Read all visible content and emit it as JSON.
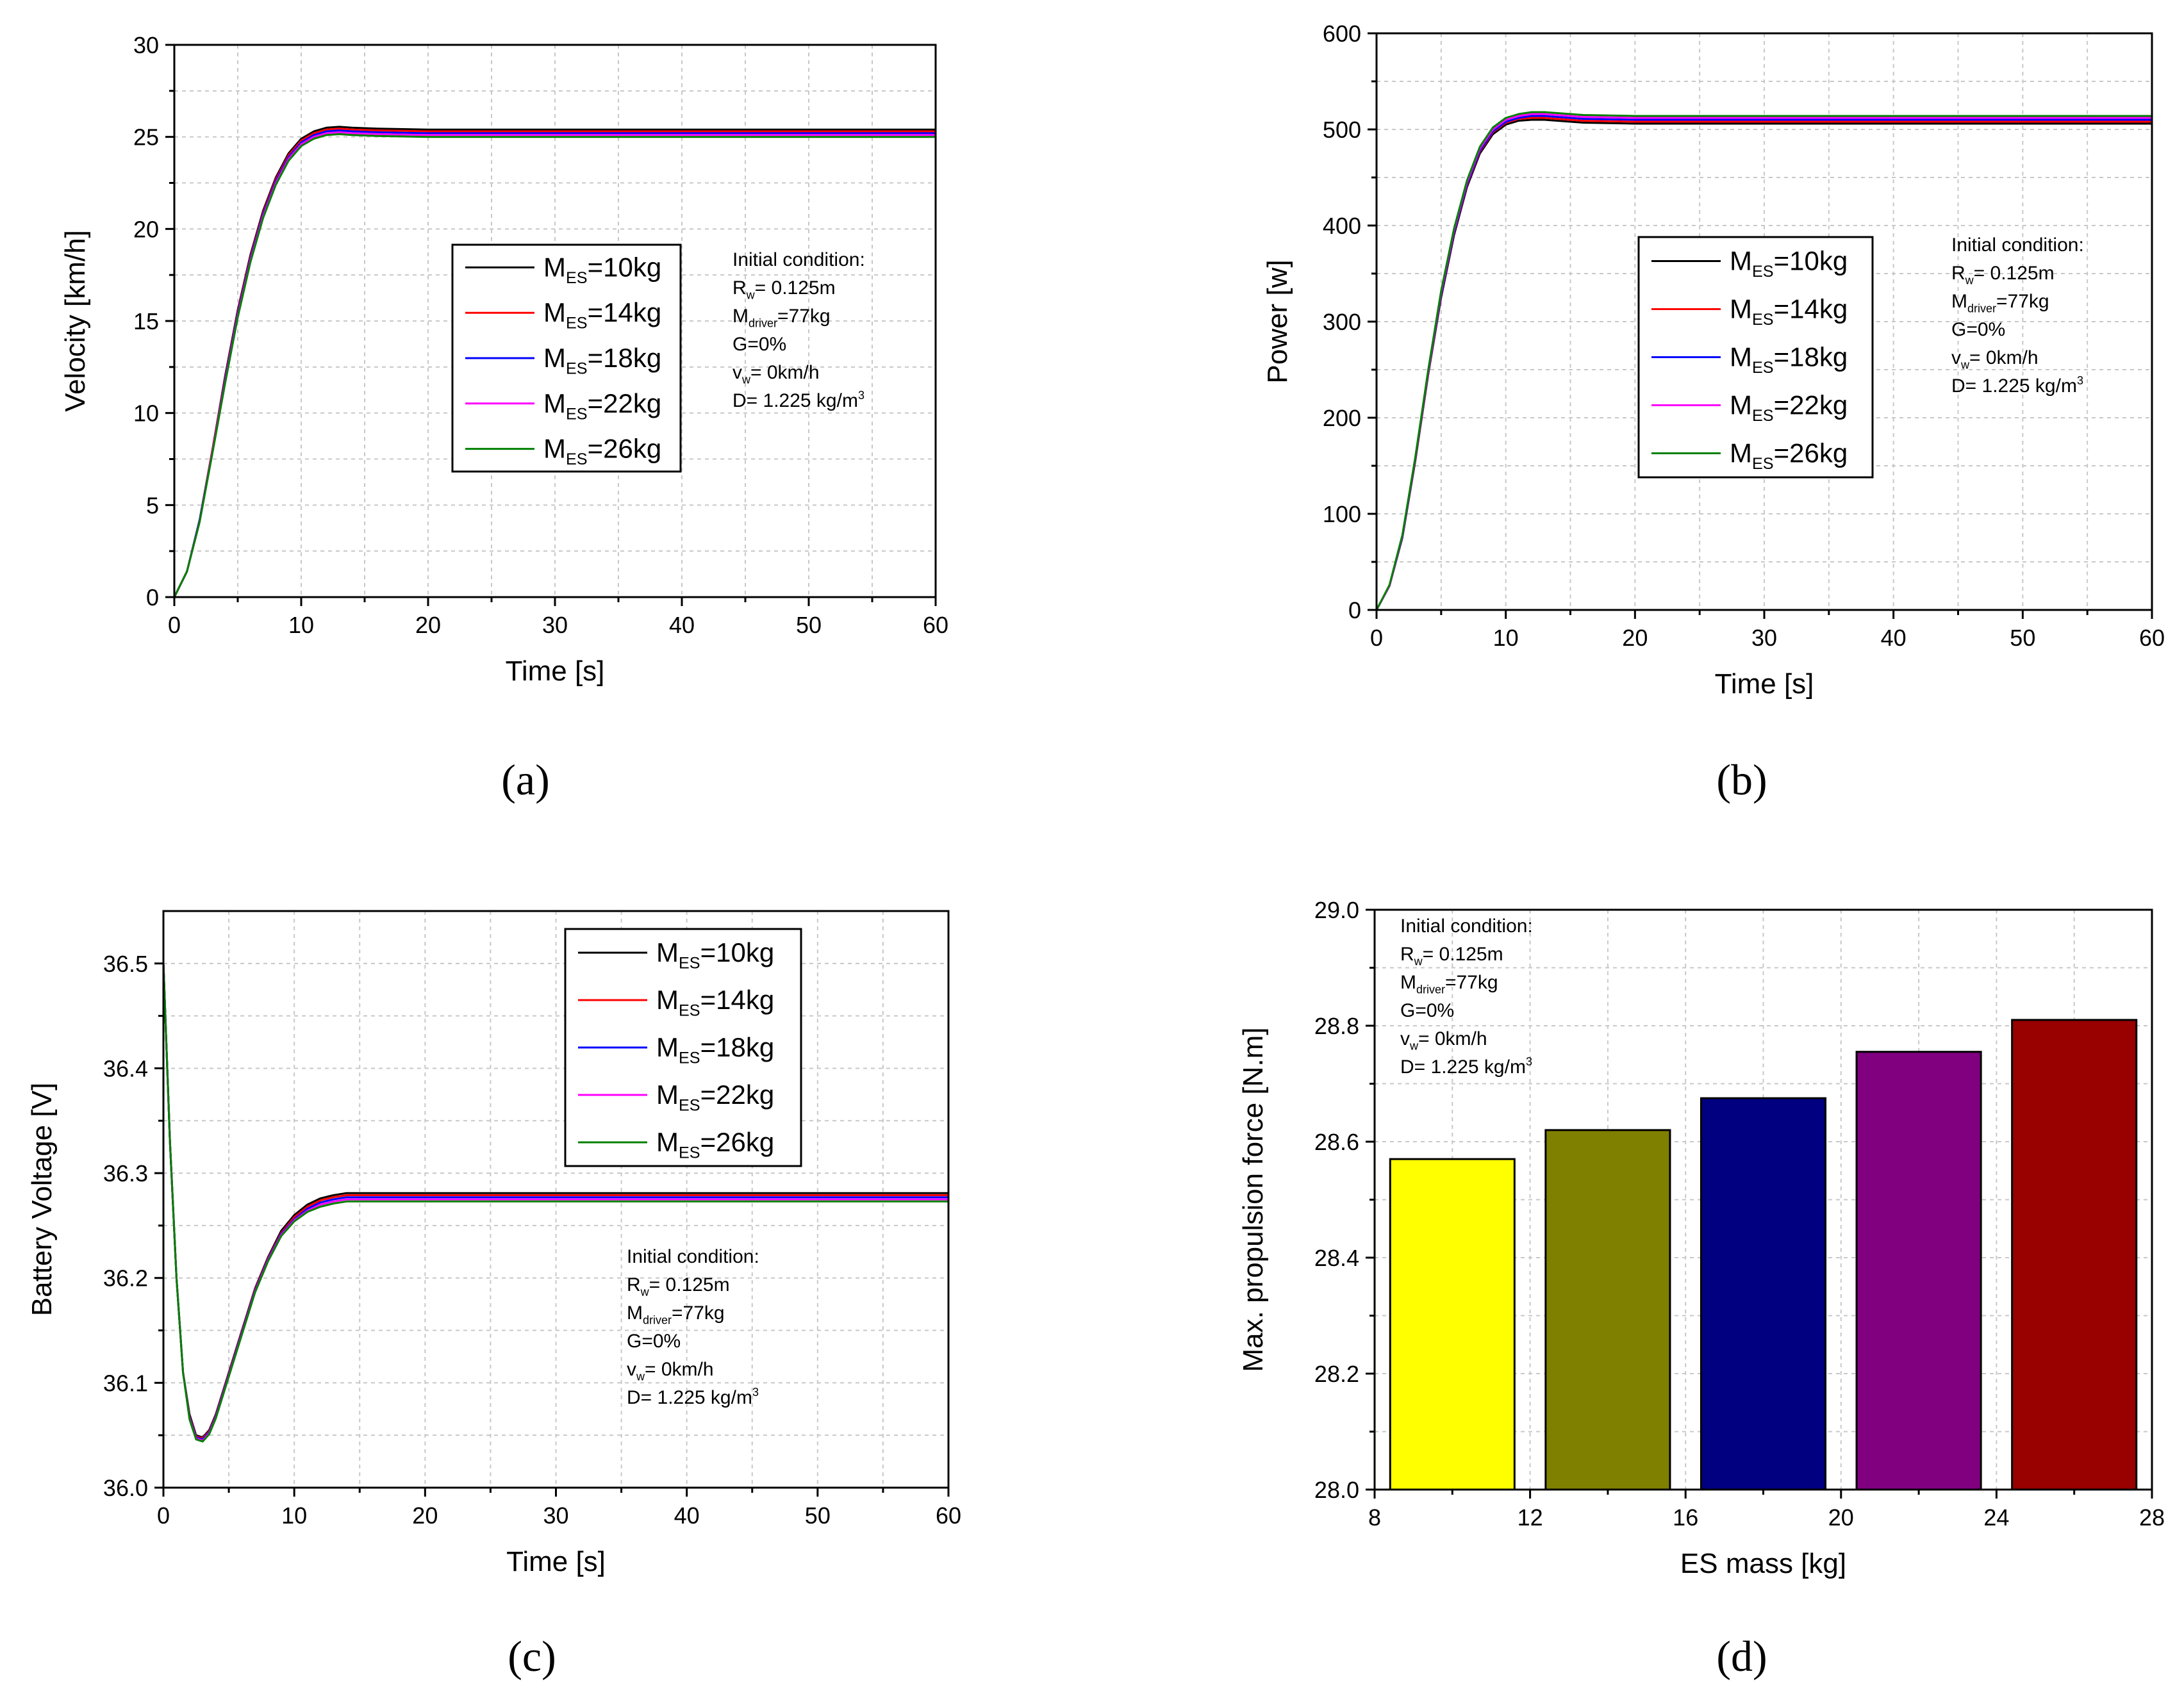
{
  "colors": {
    "series": [
      "#000000",
      "#ff0000",
      "#0000ff",
      "#ff00ff",
      "#008000"
    ],
    "bars": [
      "#ffff00",
      "#808000",
      "#000080",
      "#800080",
      "#990000"
    ],
    "grid": "#c8c8c8"
  },
  "conditions": {
    "title": "Initial condition:",
    "lines": [
      {
        "main": "R",
        "sub": "w",
        "tail": "= 0.125m"
      },
      {
        "main": "M",
        "sub": "driver",
        "tail": "=77kg"
      },
      {
        "main": "G=0%",
        "sub": "",
        "tail": ""
      },
      {
        "main": "v",
        "sub": "w",
        "tail": "= 0km/h"
      },
      {
        "main": "D= 1.225 kg/m",
        "sub": "",
        "tail": "",
        "sup": "3"
      }
    ]
  },
  "legend": {
    "entries": [
      {
        "main": "M",
        "sub": "ES",
        "tail": "=10kg"
      },
      {
        "main": "M",
        "sub": "ES",
        "tail": "=14kg"
      },
      {
        "main": "M",
        "sub": "ES",
        "tail": "=18kg"
      },
      {
        "main": "M",
        "sub": "ES",
        "tail": "=22kg"
      },
      {
        "main": "M",
        "sub": "ES",
        "tail": "=26kg"
      }
    ]
  },
  "chart_data": [
    {
      "id": "a",
      "panel_label": "(a)",
      "type": "line",
      "xlabel": "Time [s]",
      "ylabel": "Velocity [km/h]",
      "xlim": [
        0,
        60
      ],
      "ylim": [
        0,
        30
      ],
      "xticks": [
        0,
        10,
        20,
        30,
        40,
        50,
        60
      ],
      "yticks": [
        0,
        5,
        10,
        15,
        20,
        25,
        30
      ],
      "grid": true,
      "legend_position": "center-right",
      "series": [
        {
          "name": "M_ES=10kg",
          "x": [
            0,
            1,
            2,
            3,
            4,
            5,
            6,
            7,
            8,
            9,
            10,
            11,
            12,
            13,
            14,
            16,
            20,
            30,
            40,
            50,
            60
          ],
          "y": [
            0,
            1.4,
            4.2,
            8.0,
            12.0,
            15.6,
            18.6,
            21.0,
            22.8,
            24.1,
            24.9,
            25.3,
            25.5,
            25.55,
            25.5,
            25.45,
            25.4,
            25.4,
            25.4,
            25.4,
            25.4
          ]
        },
        {
          "name": "M_ES=14kg",
          "x": [
            0,
            1,
            2,
            3,
            4,
            5,
            6,
            7,
            8,
            9,
            10,
            11,
            12,
            13,
            14,
            16,
            20,
            30,
            40,
            50,
            60
          ],
          "y": [
            0,
            1.4,
            4.2,
            8.0,
            11.9,
            15.5,
            18.5,
            20.9,
            22.7,
            24.0,
            24.8,
            25.2,
            25.4,
            25.45,
            25.4,
            25.35,
            25.3,
            25.3,
            25.3,
            25.3,
            25.3
          ]
        },
        {
          "name": "M_ES=18kg",
          "x": [
            0,
            1,
            2,
            3,
            4,
            5,
            6,
            7,
            8,
            9,
            10,
            11,
            12,
            13,
            14,
            16,
            20,
            30,
            40,
            50,
            60
          ],
          "y": [
            0,
            1.4,
            4.2,
            7.9,
            11.8,
            15.4,
            18.4,
            20.8,
            22.6,
            23.9,
            24.7,
            25.1,
            25.3,
            25.35,
            25.3,
            25.25,
            25.2,
            25.2,
            25.2,
            25.2,
            25.2
          ]
        },
        {
          "name": "M_ES=22kg",
          "x": [
            0,
            1,
            2,
            3,
            4,
            5,
            6,
            7,
            8,
            9,
            10,
            11,
            12,
            13,
            14,
            16,
            20,
            30,
            40,
            50,
            60
          ],
          "y": [
            0,
            1.4,
            4.1,
            7.9,
            11.7,
            15.3,
            18.3,
            20.7,
            22.5,
            23.8,
            24.6,
            25.0,
            25.2,
            25.25,
            25.2,
            25.15,
            25.1,
            25.1,
            25.1,
            25.1,
            25.1
          ]
        },
        {
          "name": "M_ES=26kg",
          "x": [
            0,
            1,
            2,
            3,
            4,
            5,
            6,
            7,
            8,
            9,
            10,
            11,
            12,
            13,
            14,
            16,
            20,
            30,
            40,
            50,
            60
          ],
          "y": [
            0,
            1.4,
            4.1,
            7.8,
            11.6,
            15.2,
            18.2,
            20.6,
            22.4,
            23.7,
            24.5,
            24.9,
            25.1,
            25.15,
            25.1,
            25.05,
            25.0,
            25.0,
            25.0,
            25.0,
            25.0
          ]
        }
      ]
    },
    {
      "id": "b",
      "panel_label": "(b)",
      "type": "line",
      "xlabel": "Time [s]",
      "ylabel": "Power [w]",
      "xlim": [
        0,
        60
      ],
      "ylim": [
        0,
        600
      ],
      "xticks": [
        0,
        10,
        20,
        30,
        40,
        50,
        60
      ],
      "yticks": [
        0,
        100,
        200,
        300,
        400,
        500,
        600
      ],
      "grid": true,
      "legend_position": "center-right",
      "series": [
        {
          "name": "M_ES=10kg",
          "x": [
            0,
            1,
            2,
            3,
            4,
            5,
            6,
            7,
            8,
            9,
            10,
            11,
            12,
            13,
            14,
            16,
            20,
            30,
            40,
            50,
            60
          ],
          "y": [
            0,
            25,
            75,
            155,
            245,
            325,
            390,
            440,
            475,
            495,
            505,
            509,
            510,
            510,
            509,
            507,
            506,
            506,
            506,
            506,
            506
          ]
        },
        {
          "name": "M_ES=14kg",
          "x": [
            0,
            1,
            2,
            3,
            4,
            5,
            6,
            7,
            8,
            9,
            10,
            11,
            12,
            13,
            14,
            16,
            20,
            30,
            40,
            50,
            60
          ],
          "y": [
            0,
            25,
            76,
            156,
            246,
            327,
            392,
            442,
            477,
            497,
            507,
            511,
            512,
            512,
            511,
            509,
            508,
            508,
            508,
            508,
            508
          ]
        },
        {
          "name": "M_ES=18kg",
          "x": [
            0,
            1,
            2,
            3,
            4,
            5,
            6,
            7,
            8,
            9,
            10,
            11,
            12,
            13,
            14,
            16,
            20,
            30,
            40,
            50,
            60
          ],
          "y": [
            0,
            25,
            76,
            157,
            247,
            328,
            393,
            443,
            478,
            498,
            508,
            512,
            514,
            514,
            513,
            511,
            510,
            510,
            510,
            510,
            510
          ]
        },
        {
          "name": "M_ES=22kg",
          "x": [
            0,
            1,
            2,
            3,
            4,
            5,
            6,
            7,
            8,
            9,
            10,
            11,
            12,
            13,
            14,
            16,
            20,
            30,
            40,
            50,
            60
          ],
          "y": [
            0,
            25,
            77,
            158,
            248,
            330,
            395,
            445,
            480,
            500,
            510,
            514,
            516,
            516,
            515,
            513,
            512,
            512,
            512,
            512,
            512
          ]
        },
        {
          "name": "M_ES=26kg",
          "x": [
            0,
            1,
            2,
            3,
            4,
            5,
            6,
            7,
            8,
            9,
            10,
            11,
            12,
            13,
            14,
            16,
            20,
            30,
            40,
            50,
            60
          ],
          "y": [
            0,
            26,
            78,
            159,
            250,
            332,
            397,
            447,
            482,
            502,
            512,
            516,
            518,
            518,
            517,
            515,
            514,
            514,
            514,
            514,
            514
          ]
        }
      ]
    },
    {
      "id": "c",
      "panel_label": "(c)",
      "type": "line",
      "xlabel": "Time [s]",
      "ylabel": "Battery Voltage [V]",
      "xlim": [
        0,
        60
      ],
      "ylim": [
        36.0,
        36.55
      ],
      "xticks": [
        0,
        10,
        20,
        30,
        40,
        50,
        60
      ],
      "yticks": [
        36.0,
        36.1,
        36.2,
        36.3,
        36.4,
        36.5
      ],
      "grid": true,
      "legend_position": "top-right",
      "series": [
        {
          "name": "M_ES=10kg",
          "x": [
            0,
            0.5,
            1,
            1.5,
            2,
            2.5,
            3,
            3.5,
            4,
            5,
            6,
            7,
            8,
            9,
            10,
            11,
            12,
            13,
            14,
            16,
            20,
            30,
            40,
            50,
            60
          ],
          "y": [
            36.5,
            36.33,
            36.2,
            36.11,
            36.07,
            36.05,
            36.048,
            36.055,
            36.07,
            36.11,
            36.15,
            36.19,
            36.22,
            36.245,
            36.26,
            36.27,
            36.276,
            36.279,
            36.281,
            36.281,
            36.281,
            36.281,
            36.281,
            36.281,
            36.281
          ]
        },
        {
          "name": "M_ES=14kg",
          "x": [
            0,
            0.5,
            1,
            1.5,
            2,
            2.5,
            3,
            3.5,
            4,
            5,
            6,
            7,
            8,
            9,
            10,
            11,
            12,
            13,
            14,
            16,
            20,
            30,
            40,
            50,
            60
          ],
          "y": [
            36.5,
            36.33,
            36.2,
            36.11,
            36.068,
            36.049,
            36.047,
            36.054,
            36.069,
            36.109,
            36.149,
            36.189,
            36.219,
            36.243,
            36.258,
            36.268,
            36.274,
            36.277,
            36.279,
            36.279,
            36.279,
            36.279,
            36.279,
            36.279,
            36.279
          ]
        },
        {
          "name": "M_ES=18kg",
          "x": [
            0,
            0.5,
            1,
            1.5,
            2,
            2.5,
            3,
            3.5,
            4,
            5,
            6,
            7,
            8,
            9,
            10,
            11,
            12,
            13,
            14,
            16,
            20,
            30,
            40,
            50,
            60
          ],
          "y": [
            36.5,
            36.33,
            36.2,
            36.11,
            36.067,
            36.048,
            36.046,
            36.053,
            36.068,
            36.108,
            36.148,
            36.188,
            36.218,
            36.242,
            36.256,
            36.266,
            36.272,
            36.275,
            36.277,
            36.277,
            36.277,
            36.277,
            36.277,
            36.277,
            36.277
          ]
        },
        {
          "name": "M_ES=22kg",
          "x": [
            0,
            0.5,
            1,
            1.5,
            2,
            2.5,
            3,
            3.5,
            4,
            5,
            6,
            7,
            8,
            9,
            10,
            11,
            12,
            13,
            14,
            16,
            20,
            30,
            40,
            50,
            60
          ],
          "y": [
            36.5,
            36.33,
            36.2,
            36.11,
            36.066,
            36.047,
            36.045,
            36.052,
            36.067,
            36.107,
            36.147,
            36.187,
            36.217,
            36.241,
            36.255,
            36.264,
            36.27,
            36.273,
            36.275,
            36.275,
            36.275,
            36.275,
            36.275,
            36.275,
            36.275
          ]
        },
        {
          "name": "M_ES=26kg",
          "x": [
            0,
            0.5,
            1,
            1.5,
            2,
            2.5,
            3,
            3.5,
            4,
            5,
            6,
            7,
            8,
            9,
            10,
            11,
            12,
            13,
            14,
            16,
            20,
            30,
            40,
            50,
            60
          ],
          "y": [
            36.5,
            36.33,
            36.2,
            36.11,
            36.065,
            36.046,
            36.044,
            36.051,
            36.066,
            36.106,
            36.146,
            36.186,
            36.216,
            36.24,
            36.254,
            36.263,
            36.268,
            36.271,
            36.273,
            36.273,
            36.273,
            36.273,
            36.273,
            36.273,
            36.273
          ]
        }
      ]
    },
    {
      "id": "d",
      "panel_label": "(d)",
      "type": "bar",
      "xlabel": "ES mass [kg]",
      "ylabel": "Max. propulsion force [N.m]",
      "xlim": [
        8,
        28
      ],
      "ylim": [
        28.0,
        29.0
      ],
      "xticks": [
        8,
        12,
        16,
        20,
        24,
        28
      ],
      "yticks": [
        28.0,
        28.2,
        28.4,
        28.6,
        28.8,
        29.0
      ],
      "grid": true,
      "categories": [
        10,
        14,
        18,
        22,
        26
      ],
      "bar_width": 3.2,
      "values": [
        28.57,
        28.62,
        28.675,
        28.755,
        28.81
      ]
    }
  ]
}
